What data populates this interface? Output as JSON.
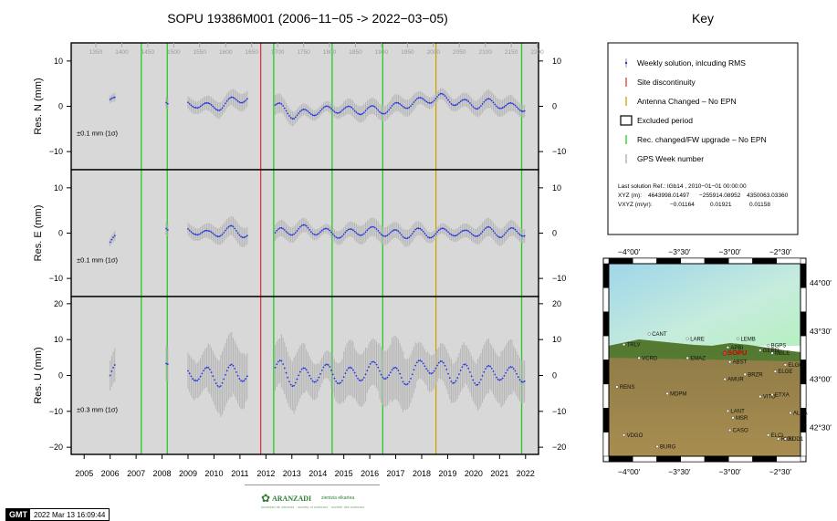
{
  "title": "SOPU 19386M001 (2006−11−05 -> 2022−03−05)",
  "key": {
    "title": "Key",
    "items": [
      {
        "label": "Weekly solution, inlcuding RMS",
        "color": "#3333cc",
        "symbol": "dot"
      },
      {
        "label": "Site discontinuity",
        "color": "#e53935",
        "symbol": "line"
      },
      {
        "label": "Antenna Changed – No EPN",
        "color": "#c9a400",
        "symbol": "line"
      },
      {
        "label": "Excluded period",
        "color": "#000000",
        "symbol": "box"
      },
      {
        "label": "Rec. changed/FW upgrade – No EPN",
        "color": "#22cc22",
        "symbol": "line"
      },
      {
        "label": "GPS Week number",
        "color": "#aaaaaa",
        "symbol": "line"
      }
    ],
    "solution_line": "Last solution Ref.: IGb14 , 2010−01−01 00:00:00",
    "xyz_label": "XYZ (m):",
    "xyz_values": [
      "4643998.01497",
      "−255914.08952",
      "4350063.03360"
    ],
    "vxyz_label": "VXYZ (m/yr):",
    "vxyz_values": [
      "−0.01164",
      "0.01921",
      "0.01158"
    ]
  },
  "chart_data": {
    "type": "scatter",
    "x_ticks": [
      2005,
      2006,
      2007,
      2008,
      2009,
      2010,
      2011,
      2012,
      2013,
      2014,
      2015,
      2016,
      2017,
      2018,
      2019,
      2020,
      2021,
      2022
    ],
    "xlim": [
      2004.5,
      2022.5
    ],
    "gps_weeks": [
      1350,
      1400,
      1450,
      1500,
      1550,
      1600,
      1650,
      1700,
      1750,
      1800,
      1850,
      1900,
      1950,
      2000,
      2050,
      2100,
      2150,
      2200
    ],
    "events": {
      "site_discontinuity": [
        2011.8
      ],
      "antenna_changed": [
        2018.55
      ],
      "receiver_changed": [
        2007.2,
        2008.2,
        2012.3,
        2014.55,
        2016.5,
        2021.85
      ]
    },
    "colors": {
      "points": "#2233dd",
      "error_bars": "#b4b4b4",
      "panel_bg": "#d8d8d8",
      "site": "#e53935",
      "antenna": "#c9a400",
      "receiver": "#22cc22"
    },
    "gaps": [
      [
        2006.2,
        2008.15
      ],
      [
        2008.25,
        2008.95
      ],
      [
        2011.3,
        2012.3
      ]
    ],
    "panels": [
      {
        "ylabel": "Res. N (mm)",
        "ylim": [
          -14,
          14
        ],
        "yticks": [
          -10,
          0,
          10
        ],
        "rms_label": "±0.1 mm (1σ)",
        "values": [
          1.5,
          0.5,
          -1,
          0,
          0.5,
          -0.5,
          0.2,
          0.6,
          -0.2,
          0,
          1.2,
          1.8,
          2,
          0.5,
          -0.3,
          -2,
          -1.5,
          -1,
          -0.8,
          -0.5,
          -1.2,
          -0.6,
          -1,
          -0.4,
          0.3,
          0.8,
          1.5,
          2,
          1.2,
          0.6,
          0.3,
          0.8,
          0.4,
          -0.3,
          -0.2
        ],
        "err": [
          1.2,
          1.2,
          1.5,
          1.8,
          1.5,
          1.2,
          1.6,
          1.4,
          1.5,
          1.3,
          1.5,
          1.4,
          1.6,
          1.7,
          1.5,
          1.3,
          1.4,
          1.5,
          1.4,
          1.6,
          1.5,
          1.4,
          1.3,
          1.5,
          1.6,
          1.4,
          1.5,
          1.7,
          1.5,
          1.4,
          1.6,
          1.5,
          1.4,
          1.2,
          1.1
        ]
      },
      {
        "ylabel": "Res. E (mm)",
        "ylim": [
          -14,
          14
        ],
        "yticks": [
          -10,
          0,
          10
        ],
        "rms_label": "±0.1 mm (1σ)",
        "values": [
          -2,
          -0.5,
          0,
          0.5,
          1,
          -0.5,
          0.3,
          0.6,
          -0.4,
          0.2,
          0.8,
          -0.2,
          -1,
          -0.5,
          0.3,
          0.5,
          1,
          0.4,
          0,
          -0.3,
          0.2,
          0.6,
          0.4,
          0,
          -0.5,
          0.3,
          -0.2,
          0.1,
          0.4,
          -0.3,
          0.2,
          0.5,
          -0.1,
          0.3,
          0.2
        ],
        "err": [
          1.4,
          1.3,
          1.6,
          1.8,
          1.7,
          1.5,
          1.6,
          1.4,
          1.5,
          1.6,
          1.7,
          1.5,
          1.6,
          1.4,
          1.5,
          1.6,
          1.5,
          1.4,
          1.6,
          1.5,
          1.7,
          1.6,
          1.5,
          1.4,
          1.6,
          1.5,
          1.4,
          1.6,
          1.5,
          1.4,
          1.6,
          1.5,
          1.4,
          1.3,
          1.2
        ]
      },
      {
        "ylabel": "Res. U (mm)",
        "ylim": [
          -22,
          22
        ],
        "yticks": [
          -20,
          -10,
          0,
          10,
          20
        ],
        "rms_label": "±0.3 mm (1σ)",
        "values": [
          0,
          2,
          -1,
          1,
          0.5,
          1.5,
          -0.5,
          0.8,
          0,
          -1,
          1,
          0.5,
          -0.5,
          1.5,
          2,
          -1,
          0,
          0.5,
          1,
          -0.5,
          0.3,
          1.2,
          2,
          0.5,
          -1,
          1.5,
          3,
          2,
          0,
          1,
          -0.5,
          0.5,
          1,
          0,
          0.5
        ],
        "err": [
          6,
          5,
          6,
          7,
          6,
          5,
          6,
          5,
          6,
          7,
          6,
          5,
          6,
          5,
          6,
          7,
          6,
          5,
          6,
          7,
          6,
          5,
          6,
          7,
          6,
          5,
          6,
          7,
          6,
          5,
          6,
          5,
          6,
          5,
          4
        ]
      }
    ]
  },
  "map": {
    "top_labels": [
      "−4°00′",
      "−3°30′",
      "−3°00′",
      "−2°30′"
    ],
    "bottom_labels": [
      "−4°00′",
      "−3°30′",
      "−3°00′",
      "−2°30′"
    ],
    "right_labels": [
      "44°00′",
      "43°30′",
      "43°00′",
      "42°30′"
    ],
    "stations": [
      {
        "name": "CANT",
        "lon": -3.8,
        "lat": 43.47
      },
      {
        "name": "TRLV",
        "lon": -4.05,
        "lat": 43.36
      },
      {
        "name": "LARE",
        "lon": -3.42,
        "lat": 43.42
      },
      {
        "name": "LEMB",
        "lon": -2.92,
        "lat": 43.42
      },
      {
        "name": "APBI",
        "lon": -3.02,
        "lat": 43.33
      },
      {
        "name": "GERN",
        "lon": -2.7,
        "lat": 43.3
      },
      {
        "name": "BGPS",
        "lon": -2.62,
        "lat": 43.35
      },
      {
        "name": "MBLE",
        "lon": -2.58,
        "lat": 43.27
      },
      {
        "name": "VCRD",
        "lon": -3.9,
        "lat": 43.22
      },
      {
        "name": "EMAZ",
        "lon": -3.42,
        "lat": 43.22
      },
      {
        "name": "SOPU",
        "lon": -3.05,
        "lat": 43.27,
        "main": true
      },
      {
        "name": "ABST",
        "lon": -3.0,
        "lat": 43.18
      },
      {
        "name": "ELGO",
        "lon": -2.45,
        "lat": 43.15
      },
      {
        "name": "ELGE",
        "lon": -2.55,
        "lat": 43.08
      },
      {
        "name": "BRZR",
        "lon": -2.85,
        "lat": 43.05
      },
      {
        "name": "AMUR",
        "lon": -3.05,
        "lat": 43.0
      },
      {
        "name": "RENS",
        "lon": -4.12,
        "lat": 42.92
      },
      {
        "name": "MDPM",
        "lon": -3.62,
        "lat": 42.85
      },
      {
        "name": "VITO",
        "lon": -2.7,
        "lat": 42.82
      },
      {
        "name": "ETXA",
        "lon": -2.58,
        "lat": 42.84
      },
      {
        "name": "LANT",
        "lon": -3.02,
        "lat": 42.67
      },
      {
        "name": "MSR",
        "lon": -2.97,
        "lat": 42.6
      },
      {
        "name": "ALDA",
        "lon": -2.4,
        "lat": 42.65
      },
      {
        "name": "CASO",
        "lon": -3.0,
        "lat": 42.47
      },
      {
        "name": "ELCI",
        "lon": -2.62,
        "lat": 42.42
      },
      {
        "name": "RIOJ",
        "lon": -2.52,
        "lat": 42.38
      },
      {
        "name": "ROD1",
        "lon": -2.45,
        "lat": 42.38
      },
      {
        "name": "VDGO",
        "lon": -4.05,
        "lat": 42.42
      },
      {
        "name": "BURG",
        "lon": -3.72,
        "lat": 42.3
      }
    ]
  },
  "footer": {
    "logo_text": "GMT",
    "timestamp": "2022 Mar 13 16:09:44",
    "org_name": "ARANZADI",
    "org_tag": "zientzia elkartea",
    "org_sub": "sociedad de ciencias · society of sciences · societe des sciences"
  }
}
